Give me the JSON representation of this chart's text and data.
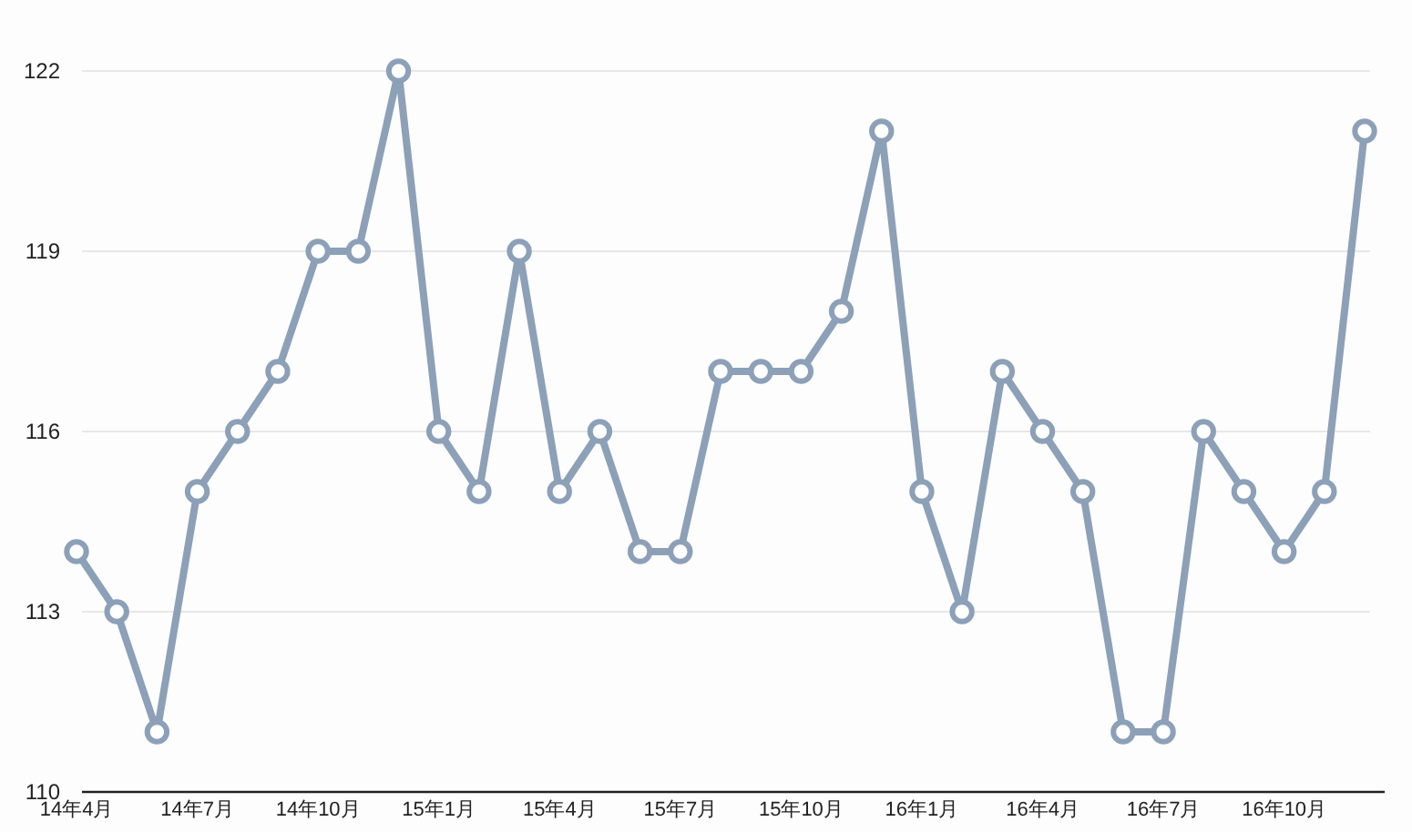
{
  "chart_data": {
    "type": "line",
    "categories": [
      "14年4月",
      null,
      null,
      "14年7月",
      null,
      null,
      "14年10月",
      null,
      null,
      "15年1月",
      null,
      null,
      "15年4月",
      null,
      null,
      "15年7月",
      null,
      null,
      "15年10月",
      null,
      null,
      "16年1月",
      null,
      null,
      "16年4月",
      null,
      null,
      "16年7月",
      null,
      null,
      "16年10月",
      null,
      null
    ],
    "series": [
      {
        "color": "#8ca0b8",
        "values": [
          114,
          113,
          111,
          115,
          116,
          117,
          119,
          119,
          122,
          116,
          115,
          119,
          115,
          116,
          114,
          114,
          117,
          117,
          117,
          118,
          121,
          115,
          113,
          117,
          116,
          115,
          111,
          111,
          116,
          115,
          114,
          115,
          121
        ]
      }
    ],
    "ylim": [
      110,
      122
    ],
    "yticks": [
      110,
      113,
      116,
      119,
      122
    ],
    "grid": "y",
    "marker": "circle",
    "line_style": "solid"
  }
}
